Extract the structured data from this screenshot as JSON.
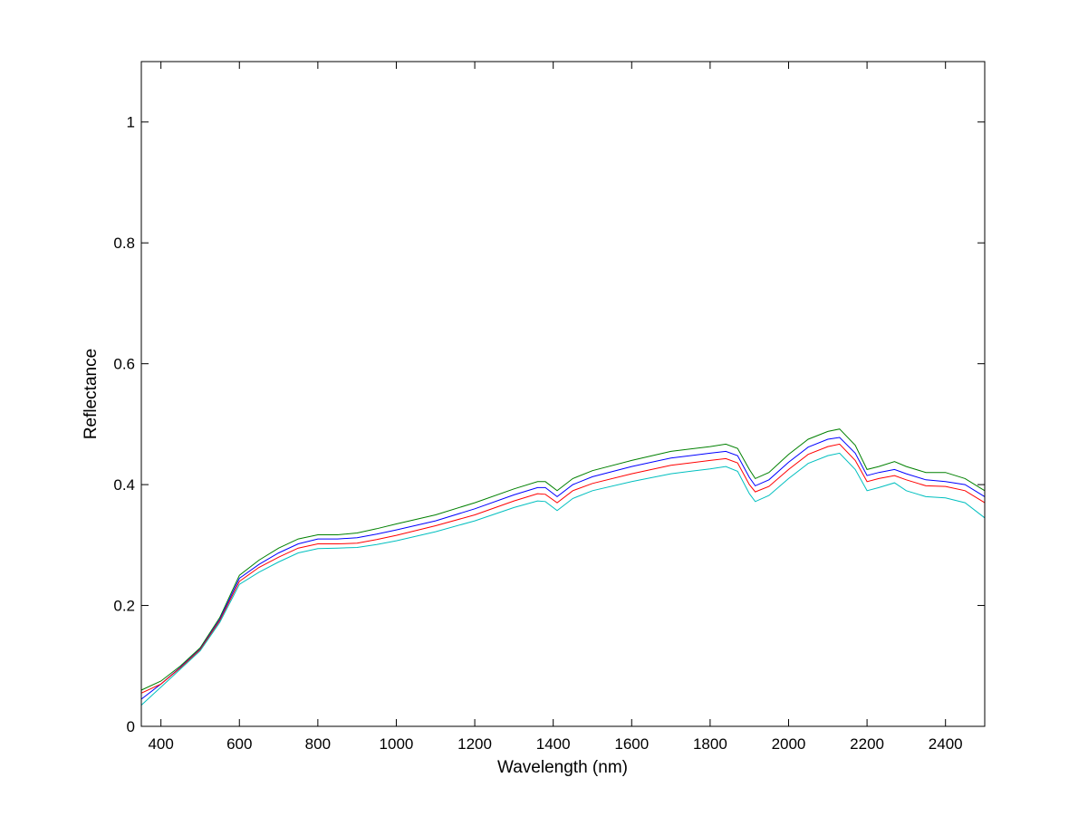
{
  "chart_data": {
    "type": "line",
    "title": "",
    "xlabel": "Wavelength (nm)",
    "ylabel": "Reflectance",
    "xlim": [
      350,
      2500
    ],
    "ylim": [
      0,
      1.1
    ],
    "x_ticks": [
      400,
      600,
      800,
      1000,
      1200,
      1400,
      1600,
      1800,
      2000,
      2200,
      2400
    ],
    "x_tick_labels": [
      "400",
      "600",
      "800",
      "1000",
      "1200",
      "1400",
      "1600",
      "1800",
      "2000",
      "2200",
      "2400"
    ],
    "y_ticks": [
      0,
      0.2,
      0.4,
      0.6,
      0.8,
      1.0
    ],
    "y_tick_labels": [
      "0",
      "0.2",
      "0.4",
      "0.6",
      "0.8",
      "1"
    ],
    "grid": false,
    "legend": "none",
    "series": [
      {
        "color": "#008000",
        "points": [
          [
            350,
            0.06
          ],
          [
            400,
            0.075
          ],
          [
            450,
            0.1
          ],
          [
            500,
            0.13
          ],
          [
            550,
            0.18
          ],
          [
            600,
            0.25
          ],
          [
            650,
            0.275
          ],
          [
            700,
            0.295
          ],
          [
            750,
            0.31
          ],
          [
            800,
            0.317
          ],
          [
            850,
            0.317
          ],
          [
            900,
            0.32
          ],
          [
            950,
            0.327
          ],
          [
            1000,
            0.335
          ],
          [
            1100,
            0.35
          ],
          [
            1200,
            0.37
          ],
          [
            1300,
            0.393
          ],
          [
            1360,
            0.405
          ],
          [
            1380,
            0.405
          ],
          [
            1410,
            0.39
          ],
          [
            1450,
            0.41
          ],
          [
            1500,
            0.423
          ],
          [
            1600,
            0.44
          ],
          [
            1700,
            0.455
          ],
          [
            1800,
            0.463
          ],
          [
            1840,
            0.467
          ],
          [
            1870,
            0.46
          ],
          [
            1900,
            0.425
          ],
          [
            1915,
            0.41
          ],
          [
            1950,
            0.42
          ],
          [
            2000,
            0.45
          ],
          [
            2050,
            0.475
          ],
          [
            2100,
            0.488
          ],
          [
            2130,
            0.492
          ],
          [
            2170,
            0.465
          ],
          [
            2200,
            0.425
          ],
          [
            2230,
            0.43
          ],
          [
            2270,
            0.438
          ],
          [
            2300,
            0.43
          ],
          [
            2350,
            0.42
          ],
          [
            2400,
            0.42
          ],
          [
            2450,
            0.41
          ],
          [
            2500,
            0.39
          ]
        ]
      },
      {
        "color": "#0000ff",
        "points": [
          [
            350,
            0.045
          ],
          [
            400,
            0.07
          ],
          [
            450,
            0.098
          ],
          [
            500,
            0.128
          ],
          [
            550,
            0.177
          ],
          [
            600,
            0.245
          ],
          [
            650,
            0.268
          ],
          [
            700,
            0.287
          ],
          [
            750,
            0.302
          ],
          [
            800,
            0.31
          ],
          [
            850,
            0.31
          ],
          [
            900,
            0.312
          ],
          [
            950,
            0.318
          ],
          [
            1000,
            0.325
          ],
          [
            1100,
            0.34
          ],
          [
            1200,
            0.36
          ],
          [
            1300,
            0.383
          ],
          [
            1360,
            0.395
          ],
          [
            1380,
            0.395
          ],
          [
            1410,
            0.38
          ],
          [
            1450,
            0.4
          ],
          [
            1500,
            0.413
          ],
          [
            1600,
            0.43
          ],
          [
            1700,
            0.444
          ],
          [
            1800,
            0.452
          ],
          [
            1840,
            0.455
          ],
          [
            1870,
            0.448
          ],
          [
            1900,
            0.412
          ],
          [
            1915,
            0.398
          ],
          [
            1950,
            0.408
          ],
          [
            2000,
            0.437
          ],
          [
            2050,
            0.462
          ],
          [
            2100,
            0.475
          ],
          [
            2130,
            0.478
          ],
          [
            2170,
            0.452
          ],
          [
            2200,
            0.415
          ],
          [
            2230,
            0.42
          ],
          [
            2270,
            0.425
          ],
          [
            2300,
            0.418
          ],
          [
            2350,
            0.408
          ],
          [
            2400,
            0.405
          ],
          [
            2450,
            0.4
          ],
          [
            2500,
            0.38
          ]
        ]
      },
      {
        "color": "#ff0000",
        "points": [
          [
            350,
            0.055
          ],
          [
            400,
            0.07
          ],
          [
            450,
            0.097
          ],
          [
            500,
            0.127
          ],
          [
            550,
            0.175
          ],
          [
            600,
            0.24
          ],
          [
            650,
            0.263
          ],
          [
            700,
            0.28
          ],
          [
            750,
            0.295
          ],
          [
            800,
            0.302
          ],
          [
            850,
            0.302
          ],
          [
            900,
            0.303
          ],
          [
            950,
            0.309
          ],
          [
            1000,
            0.316
          ],
          [
            1100,
            0.332
          ],
          [
            1200,
            0.35
          ],
          [
            1300,
            0.373
          ],
          [
            1360,
            0.385
          ],
          [
            1380,
            0.384
          ],
          [
            1410,
            0.37
          ],
          [
            1450,
            0.39
          ],
          [
            1500,
            0.402
          ],
          [
            1600,
            0.418
          ],
          [
            1700,
            0.432
          ],
          [
            1800,
            0.44
          ],
          [
            1840,
            0.443
          ],
          [
            1870,
            0.436
          ],
          [
            1900,
            0.4
          ],
          [
            1915,
            0.388
          ],
          [
            1950,
            0.397
          ],
          [
            2000,
            0.425
          ],
          [
            2050,
            0.45
          ],
          [
            2100,
            0.463
          ],
          [
            2130,
            0.467
          ],
          [
            2170,
            0.44
          ],
          [
            2200,
            0.405
          ],
          [
            2230,
            0.41
          ],
          [
            2270,
            0.415
          ],
          [
            2300,
            0.408
          ],
          [
            2350,
            0.398
          ],
          [
            2400,
            0.397
          ],
          [
            2450,
            0.39
          ],
          [
            2500,
            0.37
          ]
        ]
      },
      {
        "color": "#00bfbf",
        "points": [
          [
            350,
            0.035
          ],
          [
            400,
            0.065
          ],
          [
            450,
            0.095
          ],
          [
            500,
            0.125
          ],
          [
            550,
            0.172
          ],
          [
            600,
            0.235
          ],
          [
            650,
            0.255
          ],
          [
            700,
            0.272
          ],
          [
            750,
            0.287
          ],
          [
            800,
            0.294
          ],
          [
            850,
            0.295
          ],
          [
            900,
            0.296
          ],
          [
            950,
            0.301
          ],
          [
            1000,
            0.307
          ],
          [
            1100,
            0.322
          ],
          [
            1200,
            0.34
          ],
          [
            1300,
            0.362
          ],
          [
            1360,
            0.373
          ],
          [
            1380,
            0.372
          ],
          [
            1410,
            0.357
          ],
          [
            1450,
            0.377
          ],
          [
            1500,
            0.39
          ],
          [
            1600,
            0.405
          ],
          [
            1700,
            0.418
          ],
          [
            1800,
            0.426
          ],
          [
            1840,
            0.43
          ],
          [
            1870,
            0.422
          ],
          [
            1900,
            0.385
          ],
          [
            1915,
            0.372
          ],
          [
            1950,
            0.382
          ],
          [
            2000,
            0.41
          ],
          [
            2050,
            0.435
          ],
          [
            2100,
            0.448
          ],
          [
            2130,
            0.452
          ],
          [
            2170,
            0.425
          ],
          [
            2200,
            0.39
          ],
          [
            2230,
            0.395
          ],
          [
            2270,
            0.403
          ],
          [
            2300,
            0.39
          ],
          [
            2350,
            0.38
          ],
          [
            2400,
            0.378
          ],
          [
            2450,
            0.37
          ],
          [
            2500,
            0.345
          ]
        ]
      }
    ]
  }
}
